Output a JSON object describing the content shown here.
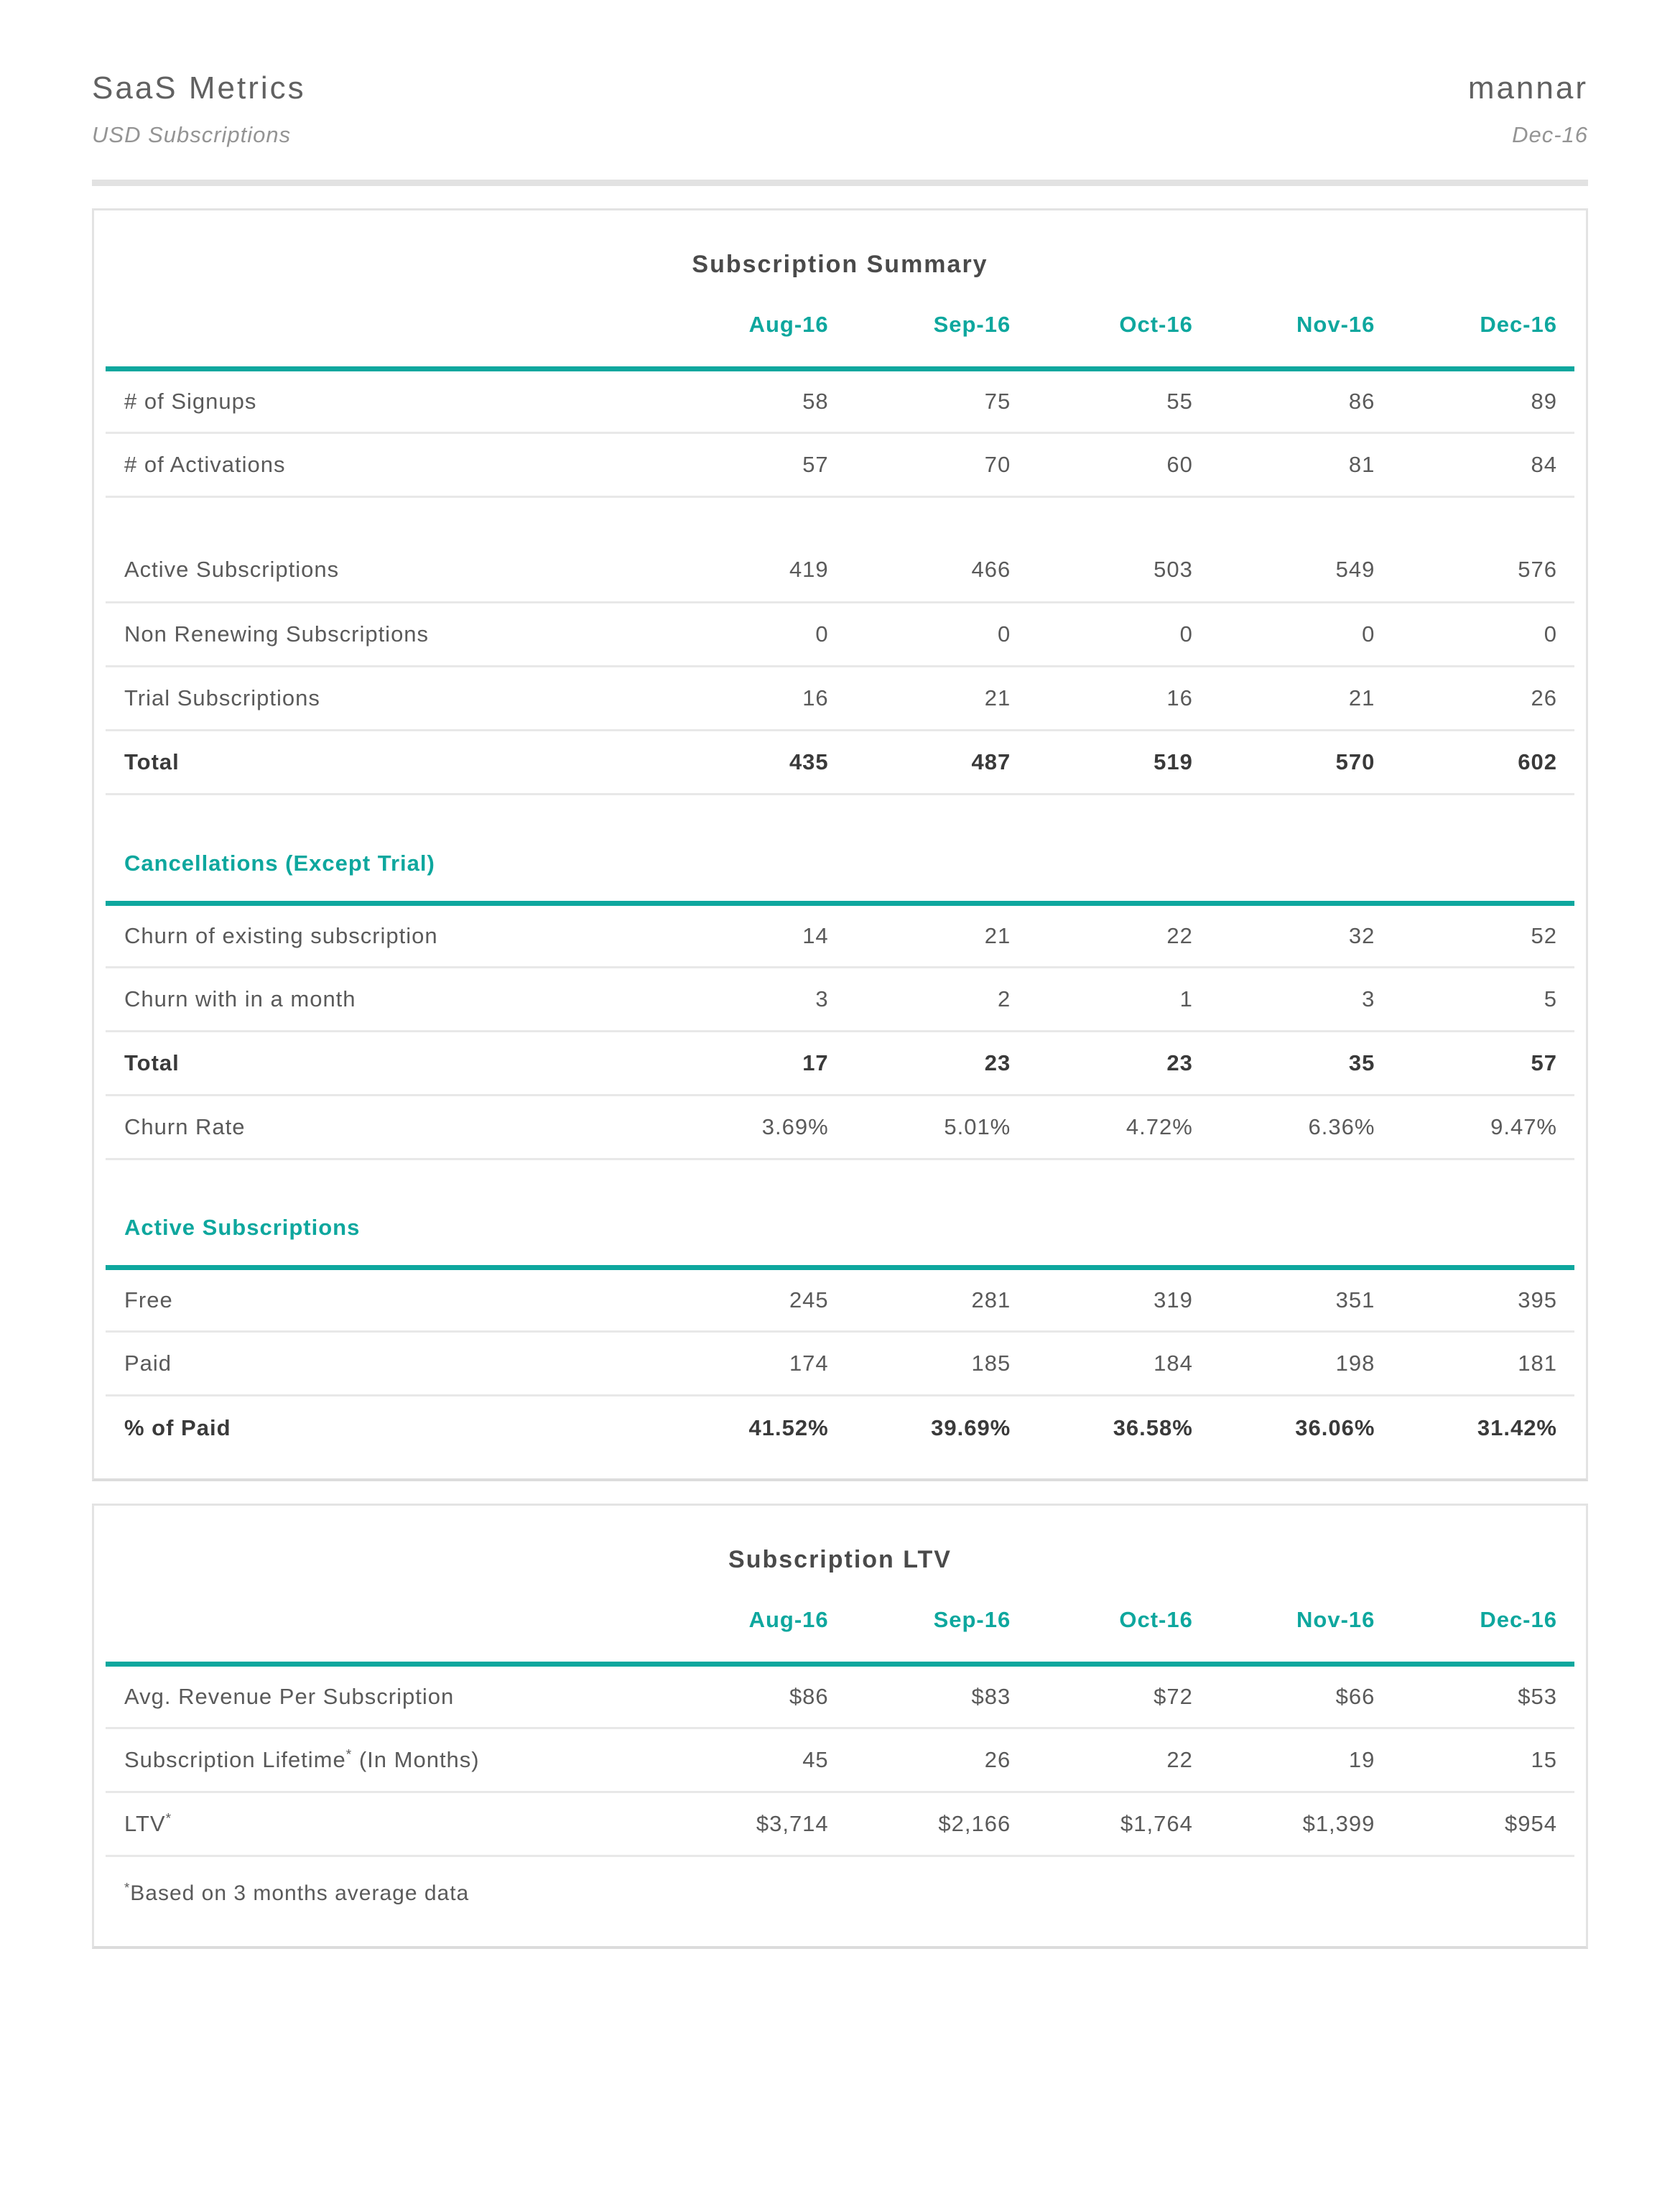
{
  "header": {
    "title": "SaaS Metrics",
    "subtitle": "USD Subscriptions",
    "brand": "mannar",
    "period": "Dec-16"
  },
  "colors": {
    "accent_teal": "#0EA79E",
    "title_text": "#4A4A4A",
    "body_text": "#5A5A5A",
    "bold_text": "#3A3A3A",
    "muted_text": "#949494",
    "separator": "#E8E8E8",
    "card_border": "#E3E3E3"
  },
  "months": [
    "Aug-16",
    "Sep-16",
    "Oct-16",
    "Nov-16",
    "Dec-16"
  ],
  "summary_table": {
    "title": "Subscription Summary",
    "groups": [
      {
        "heading": null,
        "rows": [
          {
            "label": "# of Signups",
            "values": [
              "58",
              "75",
              "55",
              "86",
              "89"
            ]
          },
          {
            "label": "# of Activations",
            "values": [
              "57",
              "70",
              "60",
              "81",
              "84"
            ]
          }
        ]
      },
      {
        "heading": null,
        "rows": [
          {
            "label": "Active Subscriptions",
            "values": [
              "419",
              "466",
              "503",
              "549",
              "576"
            ]
          },
          {
            "label": "Non Renewing Subscriptions",
            "values": [
              "0",
              "0",
              "0",
              "0",
              "0"
            ]
          },
          {
            "label": "Trial Subscriptions",
            "values": [
              "16",
              "21",
              "16",
              "21",
              "26"
            ]
          },
          {
            "label": "Total",
            "values": [
              "435",
              "487",
              "519",
              "570",
              "602"
            ],
            "bold": true
          }
        ]
      },
      {
        "heading": "Cancellations (Except Trial)",
        "rows": [
          {
            "label": "Churn of existing subscription",
            "values": [
              "14",
              "21",
              "22",
              "32",
              "52"
            ]
          },
          {
            "label": "Churn with in a month",
            "values": [
              "3",
              "2",
              "1",
              "3",
              "5"
            ]
          },
          {
            "label": "Total",
            "values": [
              "17",
              "23",
              "23",
              "35",
              "57"
            ],
            "bold": true
          },
          {
            "label": "Churn Rate",
            "values": [
              "3.69%",
              "5.01%",
              "4.72%",
              "6.36%",
              "9.47%"
            ]
          }
        ]
      },
      {
        "heading": "Active Subscriptions",
        "rows": [
          {
            "label": "Free",
            "values": [
              "245",
              "281",
              "319",
              "351",
              "395"
            ]
          },
          {
            "label": "Paid",
            "values": [
              "174",
              "185",
              "184",
              "198",
              "181"
            ]
          },
          {
            "label": "% of Paid",
            "values": [
              "41.52%",
              "39.69%",
              "36.58%",
              "36.06%",
              "31.42%"
            ],
            "bold": true
          }
        ]
      }
    ]
  },
  "ltv_table": {
    "title": "Subscription LTV",
    "groups": [
      {
        "heading": null,
        "rows": [
          {
            "label": "Avg. Revenue Per Subscription",
            "values": [
              "$86",
              "$83",
              "$72",
              "$66",
              "$53"
            ]
          },
          {
            "label": "Subscription Lifetime",
            "label_asterisk": true,
            "label_suffix": " (In Months)",
            "values": [
              "45",
              "26",
              "22",
              "19",
              "15"
            ]
          },
          {
            "label": "LTV",
            "label_asterisk": true,
            "values": [
              "$3,714",
              "$2,166",
              "$1,764",
              "$1,399",
              "$954"
            ]
          }
        ]
      }
    ],
    "footnote": {
      "asterisk": true,
      "text": "Based on 3 months average data"
    }
  }
}
